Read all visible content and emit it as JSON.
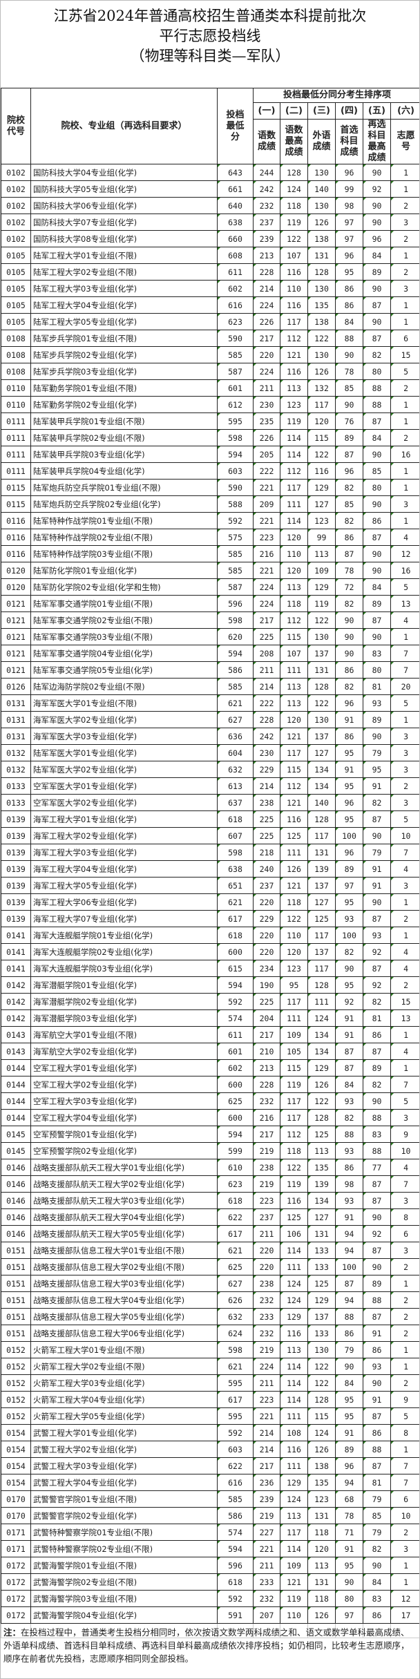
{
  "title": {
    "line1": "江苏省2024年普通高校招生普通类本科提前批次",
    "line2": "平行志愿投档线",
    "line3": "（物理等科目类—军队）"
  },
  "header": {
    "code": "院校代号",
    "name": "院校、专业组（再选科目要求）",
    "min_score": "投档最低分",
    "tie_group": "投档最低分同分考生排序项",
    "tie_numbers": [
      "(一)",
      "(二)",
      "(三)",
      "(四)",
      "(五)",
      "(六)"
    ],
    "tie_labels": [
      "语数成绩",
      "语数最高成绩",
      "外语成绩",
      "首选科目成绩",
      "再选科目最高成绩",
      "志愿号"
    ]
  },
  "rows": [
    [
      "0102",
      "国防科技大学04专业组(化学)",
      "643",
      "244",
      "128",
      "130",
      "96",
      "90",
      "1"
    ],
    [
      "0102",
      "国防科技大学05专业组(化学)",
      "661",
      "242",
      "124",
      "140",
      "99",
      "92",
      "1"
    ],
    [
      "0102",
      "国防科技大学06专业组(化学)",
      "640",
      "232",
      "118",
      "130",
      "98",
      "90",
      "2"
    ],
    [
      "0102",
      "国防科技大学07专业组(化学)",
      "638",
      "237",
      "119",
      "126",
      "97",
      "90",
      "3"
    ],
    [
      "0102",
      "国防科技大学08专业组(化学)",
      "660",
      "239",
      "122",
      "138",
      "97",
      "96",
      "2"
    ],
    [
      "0105",
      "陆军工程大学01专业组(不限)",
      "608",
      "213",
      "107",
      "131",
      "96",
      "84",
      "1"
    ],
    [
      "0105",
      "陆军工程大学02专业组(不限)",
      "611",
      "228",
      "116",
      "128",
      "95",
      "89",
      "2"
    ],
    [
      "0105",
      "陆军工程大学03专业组(化学)",
      "602",
      "214",
      "110",
      "130",
      "86",
      "90",
      "3"
    ],
    [
      "0105",
      "陆军工程大学04专业组(化学)",
      "616",
      "224",
      "116",
      "135",
      "86",
      "87",
      "1"
    ],
    [
      "0105",
      "陆军工程大学05专业组(化学)",
      "623",
      "226",
      "117",
      "138",
      "84",
      "90",
      "1"
    ],
    [
      "0108",
      "陆军步兵学院01专业组(不限)",
      "590",
      "217",
      "112",
      "122",
      "88",
      "87",
      "6"
    ],
    [
      "0108",
      "陆军步兵学院02专业组(化学)",
      "585",
      "220",
      "121",
      "130",
      "90",
      "82",
      "15"
    ],
    [
      "0108",
      "陆军步兵学院03专业组(化学)",
      "587",
      "224",
      "116",
      "126",
      "78",
      "80",
      "5"
    ],
    [
      "0110",
      "陆军勤务学院01专业组(不限)",
      "601",
      "211",
      "113",
      "132",
      "85",
      "88",
      "2"
    ],
    [
      "0110",
      "陆军勤务学院02专业组(化学)",
      "612",
      "230",
      "123",
      "117",
      "90",
      "88",
      "1"
    ],
    [
      "0111",
      "陆军装甲兵学院01专业组(不限)",
      "595",
      "235",
      "119",
      "120",
      "76",
      "87",
      "1"
    ],
    [
      "0111",
      "陆军装甲兵学院02专业组(不限)",
      "598",
      "226",
      "114",
      "115",
      "89",
      "84",
      "2"
    ],
    [
      "0111",
      "陆军装甲兵学院03专业组(化学)",
      "594",
      "205",
      "114",
      "122",
      "87",
      "90",
      "16"
    ],
    [
      "0111",
      "陆军装甲兵学院04专业组(化学)",
      "603",
      "222",
      "112",
      "116",
      "96",
      "85",
      "1"
    ],
    [
      "0115",
      "陆军炮兵防空兵学院01专业组(不限)",
      "590",
      "221",
      "117",
      "129",
      "82",
      "80",
      "1"
    ],
    [
      "0115",
      "陆军炮兵防空兵学院02专业组(化学)",
      "588",
      "209",
      "111",
      "127",
      "85",
      "90",
      "3"
    ],
    [
      "0116",
      "陆军特种作战学院01专业组(不限)",
      "592",
      "221",
      "114",
      "123",
      "82",
      "86",
      "1"
    ],
    [
      "0116",
      "陆军特种作战学院02专业组(不限)",
      "575",
      "223",
      "120",
      "99",
      "86",
      "87",
      "4"
    ],
    [
      "0116",
      "陆军特种作战学院03专业组(不限)",
      "585",
      "216",
      "110",
      "113",
      "87",
      "90",
      "12"
    ],
    [
      "0120",
      "陆军防化学院01专业组(化学)",
      "585",
      "221",
      "120",
      "109",
      "78",
      "90",
      "16"
    ],
    [
      "0120",
      "陆军防化学院02专业组(化学和生物)",
      "587",
      "224",
      "113",
      "129",
      "72",
      "84",
      "5"
    ],
    [
      "0121",
      "陆军军事交通学院01专业组(不限)",
      "596",
      "224",
      "118",
      "119",
      "82",
      "89",
      "13"
    ],
    [
      "0121",
      "陆军军事交通学院02专业组(不限)",
      "598",
      "217",
      "112",
      "122",
      "90",
      "87",
      "4"
    ],
    [
      "0121",
      "陆军军事交通学院03专业组(不限)",
      "620",
      "225",
      "115",
      "130",
      "90",
      "90",
      "1"
    ],
    [
      "0121",
      "陆军军事交通学院04专业组(化学)",
      "594",
      "208",
      "107",
      "137",
      "90",
      "83",
      "7"
    ],
    [
      "0121",
      "陆军军事交通学院05专业组(化学)",
      "586",
      "211",
      "111",
      "131",
      "86",
      "80",
      "7"
    ],
    [
      "0126",
      "陆军边海防学院02专业组(不限)",
      "585",
      "214",
      "113",
      "128",
      "82",
      "81",
      "20"
    ],
    [
      "0131",
      "海军军医大学01专业组(不限)",
      "621",
      "222",
      "113",
      "122",
      "96",
      "93",
      "5"
    ],
    [
      "0131",
      "海军军医大学02专业组(化学)",
      "627",
      "228",
      "120",
      "130",
      "91",
      "89",
      "1"
    ],
    [
      "0131",
      "海军军医大学03专业组(化学)",
      "636",
      "242",
      "121",
      "137",
      "86",
      "90",
      "3"
    ],
    [
      "0132",
      "陆军军医大学01专业组(化学)",
      "604",
      "230",
      "117",
      "127",
      "95",
      "79",
      "3"
    ],
    [
      "0132",
      "陆军军医大学02专业组(化学)",
      "632",
      "229",
      "115",
      "134",
      "91",
      "95",
      "3"
    ],
    [
      "0133",
      "空军军医大学01专业组(化学)",
      "613",
      "214",
      "112",
      "134",
      "95",
      "91",
      "2"
    ],
    [
      "0133",
      "空军军医大学02专业组(化学)",
      "637",
      "238",
      "121",
      "140",
      "96",
      "82",
      "3"
    ],
    [
      "0139",
      "海军工程大学01专业组(化学)",
      "618",
      "225",
      "116",
      "128",
      "95",
      "87",
      "5"
    ],
    [
      "0139",
      "海军工程大学02专业组(化学)",
      "607",
      "225",
      "125",
      "117",
      "100",
      "90",
      "10"
    ],
    [
      "0139",
      "海军工程大学03专业组(化学)",
      "598",
      "218",
      "111",
      "131",
      "96",
      "79",
      "7"
    ],
    [
      "0139",
      "海军工程大学04专业组(化学)",
      "638",
      "240",
      "126",
      "139",
      "89",
      "91",
      "4"
    ],
    [
      "0139",
      "海军工程大学05专业组(化学)",
      "651",
      "237",
      "121",
      "137",
      "97",
      "91",
      "3"
    ],
    [
      "0139",
      "海军工程大学06专业组(化学)",
      "621",
      "220",
      "118",
      "127",
      "95",
      "90",
      "1"
    ],
    [
      "0139",
      "海军工程大学07专业组(化学)",
      "617",
      "229",
      "122",
      "125",
      "93",
      "87",
      "2"
    ],
    [
      "0141",
      "海军大连舰艇学院01专业组(化学)",
      "618",
      "220",
      "110",
      "117",
      "100",
      "93",
      "1"
    ],
    [
      "0141",
      "海军大连舰艇学院02专业组(化学)",
      "600",
      "220",
      "120",
      "137",
      "82",
      "92",
      "4"
    ],
    [
      "0141",
      "海军大连舰艇学院03专业组(化学)",
      "615",
      "234",
      "123",
      "117",
      "90",
      "87",
      "4"
    ],
    [
      "0142",
      "海军潜艇学院01专业组(化学)",
      "594",
      "190",
      "95",
      "128",
      "95",
      "92",
      "2"
    ],
    [
      "0142",
      "海军潜艇学院02专业组(化学)",
      "592",
      "225",
      "117",
      "111",
      "92",
      "82",
      "15"
    ],
    [
      "0142",
      "海军潜艇学院03专业组(化学)",
      "574",
      "204",
      "111",
      "124",
      "91",
      "81",
      "13"
    ],
    [
      "0143",
      "海军航空大学01专业组(不限)",
      "611",
      "217",
      "109",
      "134",
      "91",
      "86",
      "1"
    ],
    [
      "0143",
      "海军航空大学02专业组(化学)",
      "601",
      "210",
      "105",
      "134",
      "87",
      "87",
      "4"
    ],
    [
      "0144",
      "空军工程大学01专业组(化学)",
      "602",
      "213",
      "115",
      "129",
      "87",
      "89",
      "1"
    ],
    [
      "0144",
      "空军工程大学02专业组(化学)",
      "600",
      "228",
      "119",
      "126",
      "84",
      "82",
      "7"
    ],
    [
      "0144",
      "空军工程大学03专业组(化学)",
      "625",
      "232",
      "117",
      "122",
      "93",
      "90",
      "5"
    ],
    [
      "0144",
      "空军工程大学04专业组(化学)",
      "600",
      "216",
      "117",
      "128",
      "82",
      "88",
      "3"
    ],
    [
      "0145",
      "空军预警学院01专业组(化学)",
      "594",
      "217",
      "112",
      "125",
      "88",
      "83",
      "9"
    ],
    [
      "0145",
      "空军预警学院02专业组(化学)",
      "599",
      "219",
      "118",
      "113",
      "93",
      "88",
      "10"
    ],
    [
      "0146",
      "战略支援部队航天工程大学01专业组(化学)",
      "610",
      "238",
      "122",
      "135",
      "86",
      "77",
      "4"
    ],
    [
      "0146",
      "战略支援部队航天工程大学02专业组(化学)",
      "623",
      "219",
      "119",
      "139",
      "98",
      "87",
      "7"
    ],
    [
      "0146",
      "战略支援部队航天工程大学03专业组(化学)",
      "618",
      "223",
      "116",
      "134",
      "93",
      "87",
      "3"
    ],
    [
      "0146",
      "战略支援部队航天工程大学04专业组(化学)",
      "622",
      "237",
      "125",
      "127",
      "91",
      "90",
      "8"
    ],
    [
      "0146",
      "战略支援部队航天工程大学05专业组(化学)",
      "617",
      "211",
      "106",
      "131",
      "94",
      "92",
      "6"
    ],
    [
      "0151",
      "战略支援部队信息工程大学01专业组(不限)",
      "621",
      "220",
      "114",
      "133",
      "94",
      "87",
      "3"
    ],
    [
      "0151",
      "战略支援部队信息工程大学02专业组(不限)",
      "625",
      "220",
      "111",
      "133",
      "100",
      "90",
      "2"
    ],
    [
      "0151",
      "战略支援部队信息工程大学03专业组(化学)",
      "627",
      "238",
      "124",
      "125",
      "87",
      "89",
      "1"
    ],
    [
      "0151",
      "战略支援部队信息工程大学04专业组(化学)",
      "626",
      "232",
      "124",
      "129",
      "94",
      "88",
      "2"
    ],
    [
      "0151",
      "战略支援部队信息工程大学05专业组(化学)",
      "632",
      "233",
      "129",
      "137",
      "88",
      "87",
      "2"
    ],
    [
      "0151",
      "战略支援部队信息工程大学06专业组(化学)",
      "624",
      "232",
      "116",
      "133",
      "86",
      "91",
      "2"
    ],
    [
      "0152",
      "火箭军工程大学01专业组(不限)",
      "598",
      "219",
      "113",
      "130",
      "79",
      "86",
      "1"
    ],
    [
      "0152",
      "火箭军工程大学02专业组(不限)",
      "621",
      "224",
      "114",
      "122",
      "90",
      "93",
      "1"
    ],
    [
      "0152",
      "火箭军工程大学03专业组(化学)",
      "595",
      "211",
      "114",
      "122",
      "84",
      "90",
      "2"
    ],
    [
      "0152",
      "火箭军工程大学04专业组(化学)",
      "617",
      "223",
      "114",
      "128",
      "95",
      "91",
      "9"
    ],
    [
      "0152",
      "火箭军工程大学05专业组(化学)",
      "595",
      "221",
      "111",
      "115",
      "95",
      "87",
      "5"
    ],
    [
      "0154",
      "武警工程大学01专业组(化学)",
      "592",
      "214",
      "108",
      "124",
      "91",
      "86",
      "8"
    ],
    [
      "0154",
      "武警工程大学02专业组(化学)",
      "603",
      "214",
      "116",
      "126",
      "89",
      "88",
      "1"
    ],
    [
      "0154",
      "武警工程大学03专业组(化学)",
      "622",
      "217",
      "111",
      "138",
      "96",
      "87",
      "7"
    ],
    [
      "0154",
      "武警工程大学04专业组(化学)",
      "616",
      "236",
      "129",
      "135",
      "94",
      "81",
      "7"
    ],
    [
      "0170",
      "武警警官学院01专业组(不限)",
      "585",
      "239",
      "124",
      "123",
      "68",
      "79",
      "6"
    ],
    [
      "0170",
      "武警警官学院02专业组(化学)",
      "586",
      "219",
      "113",
      "131",
      "78",
      "85",
      "10"
    ],
    [
      "0171",
      "武警特种警察学院01专业组(不限)",
      "574",
      "227",
      "117",
      "118",
      "71",
      "79",
      "2"
    ],
    [
      "0171",
      "武警特种警察学院02专业组(不限)",
      "594",
      "221",
      "114",
      "120",
      "91",
      "82",
      "3"
    ],
    [
      "0172",
      "武警海警学院01专业组(不限)",
      "596",
      "211",
      "109",
      "113",
      "95",
      "90",
      "1"
    ],
    [
      "0172",
      "武警海警学院02专业组(不限)",
      "618",
      "233",
      "121",
      "131",
      "90",
      "84",
      "1"
    ],
    [
      "0172",
      "武警海警学院03专业组(不限)",
      "592",
      "232",
      "119",
      "118",
      "80",
      "83",
      "12"
    ],
    [
      "0172",
      "武警海警学院04专业组(化学)",
      "591",
      "207",
      "110",
      "126",
      "97",
      "86",
      "17"
    ]
  ],
  "note": {
    "label": "注：",
    "text": "在投档过程中，普通类考生投档分相同时，依次按语文数学两科成绩之和、语文或数学单科最高成绩、外语单科成绩、首选科目单科成绩、再选科目单科最高成绩依次排序投档；如仍相同，比较考生志愿顺序，顺序在前者优先投档，志愿顺序相同则全部投档。"
  },
  "colors": {
    "cell_marker": "#2a7a1f",
    "border": "#222222"
  }
}
